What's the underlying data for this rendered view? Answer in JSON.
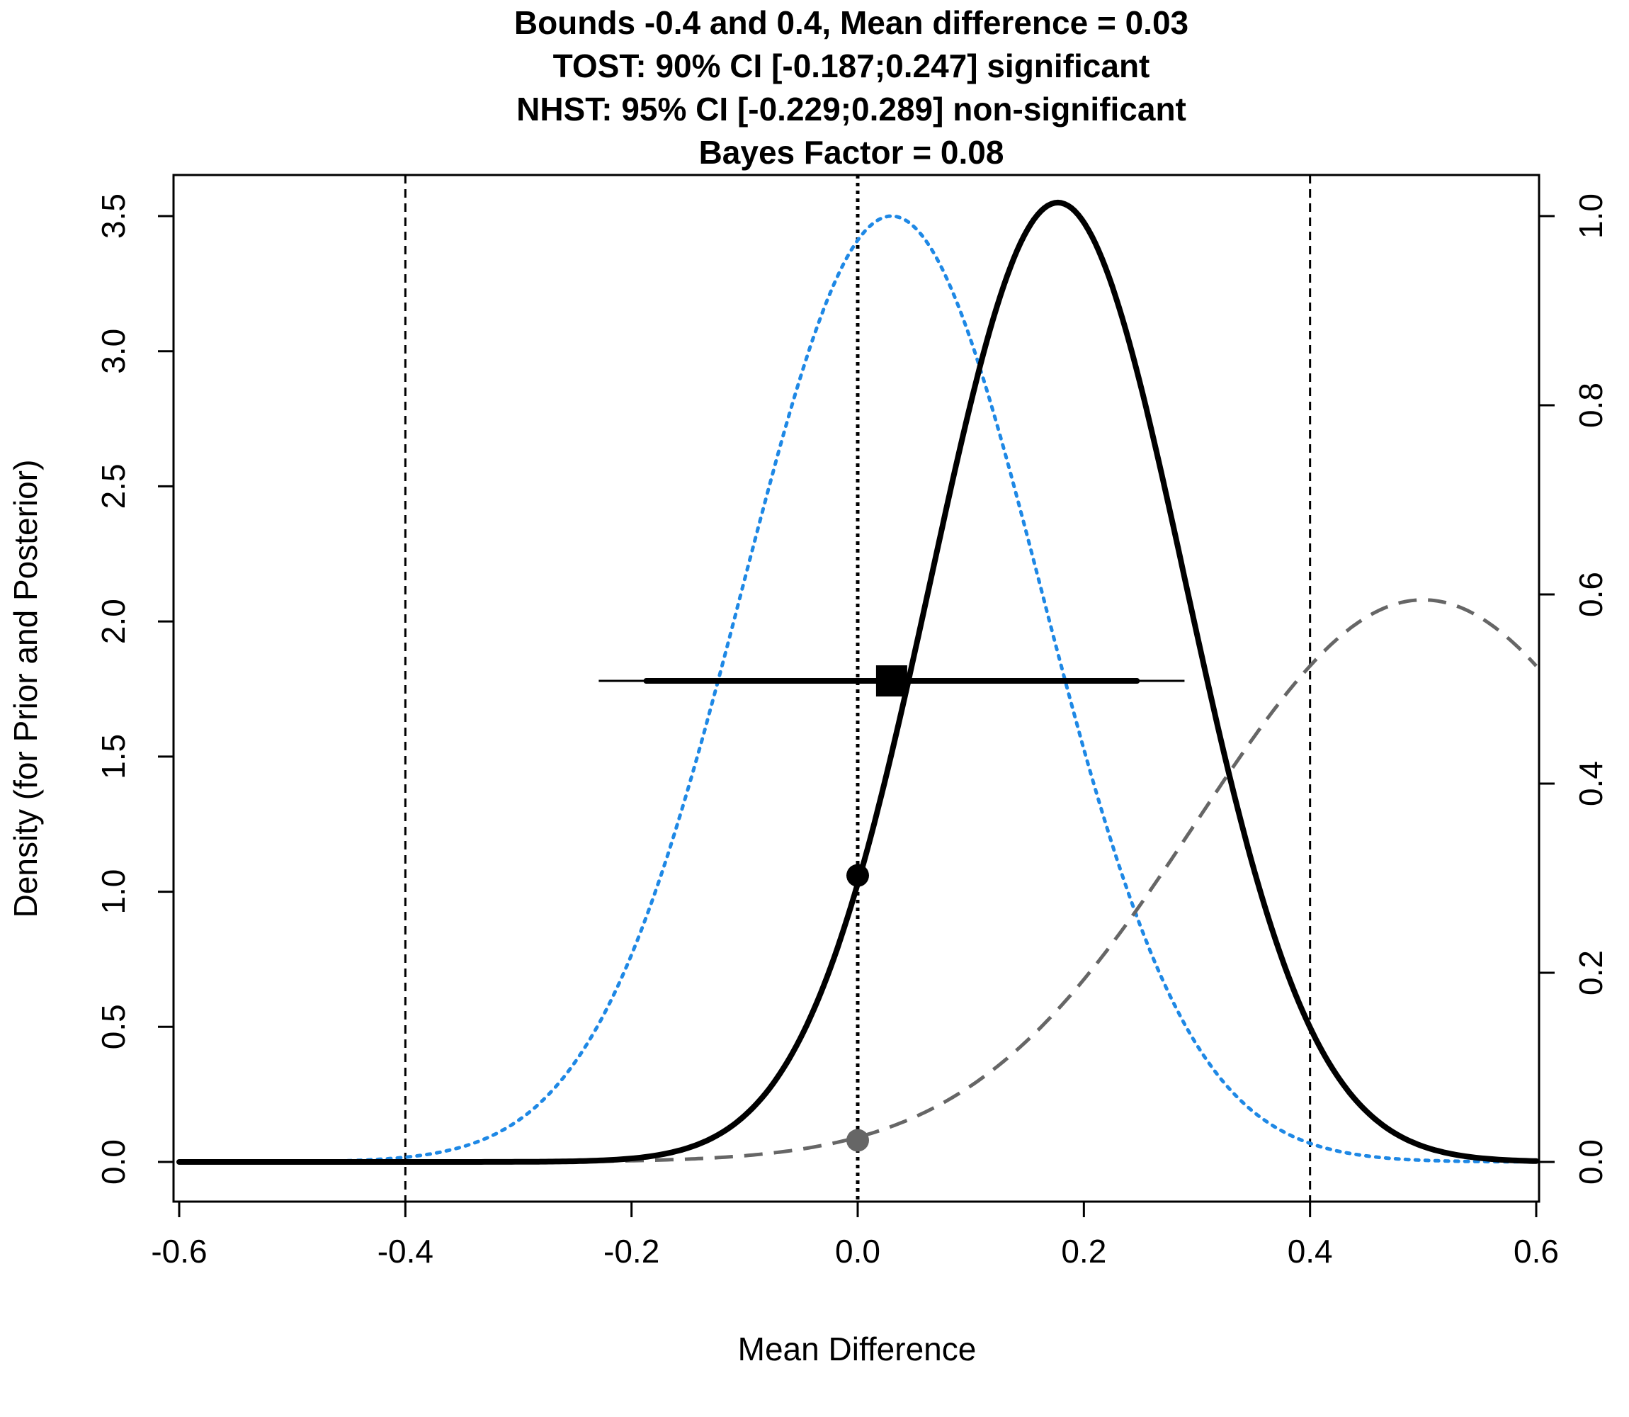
{
  "chart_data": {
    "type": "line",
    "title_lines": [
      "Bounds -0.4 and 0.4, Mean difference = 0.03",
      "TOST: 90% CI [-0.187;0.247] significant",
      "NHST: 95% CI [-0.229;0.289] non-significant",
      "Bayes Factor = 0.08"
    ],
    "xlabel": "Mean Difference",
    "ylabel": "Density (for Prior and Posterior)",
    "xlim": [
      -0.6,
      0.6
    ],
    "ylim_left": [
      0,
      3.5
    ],
    "ylim_right": [
      0,
      1.0
    ],
    "x_ticks": [
      "-0.6",
      "-0.4",
      "-0.2",
      "0.0",
      "0.2",
      "0.4",
      "0.6"
    ],
    "y_ticks_left": [
      "0.0",
      "0.5",
      "1.0",
      "1.5",
      "2.0",
      "2.5",
      "3.0",
      "3.5"
    ],
    "y_ticks_right": [
      "0.0",
      "0.2",
      "0.4",
      "0.6",
      "0.8",
      "1.0"
    ],
    "grid": false,
    "equivalence_bounds": [
      -0.4,
      0.4
    ],
    "mean_difference": 0.03,
    "tost_ci_90": [
      -0.187,
      0.247
    ],
    "nhst_ci_95": [
      -0.229,
      0.289
    ],
    "bayes_factor": 0.08,
    "series": [
      {
        "style": "dotted",
        "color": "#1e88e5",
        "axis": "right",
        "shape": "normal",
        "mean": 0.03,
        "sd": 0.132,
        "peak": 1.0
      },
      {
        "style": "solid",
        "color": "#000000",
        "axis": "left",
        "shape": "normal",
        "mean": 0.177,
        "sd": 0.1125,
        "peak": 3.55
      },
      {
        "style": "dashed",
        "color": "#666666",
        "axis": "left",
        "shape": "normal",
        "mean": 0.5,
        "sd": 0.2,
        "peak": 2.08
      }
    ],
    "points": [
      {
        "x": 0.0,
        "y": 1.06,
        "color": "#000000"
      },
      {
        "x": 0.0,
        "y": 0.08,
        "color": "#666666"
      }
    ],
    "estimate_marker": {
      "x": 0.03,
      "y": 1.78
    }
  }
}
